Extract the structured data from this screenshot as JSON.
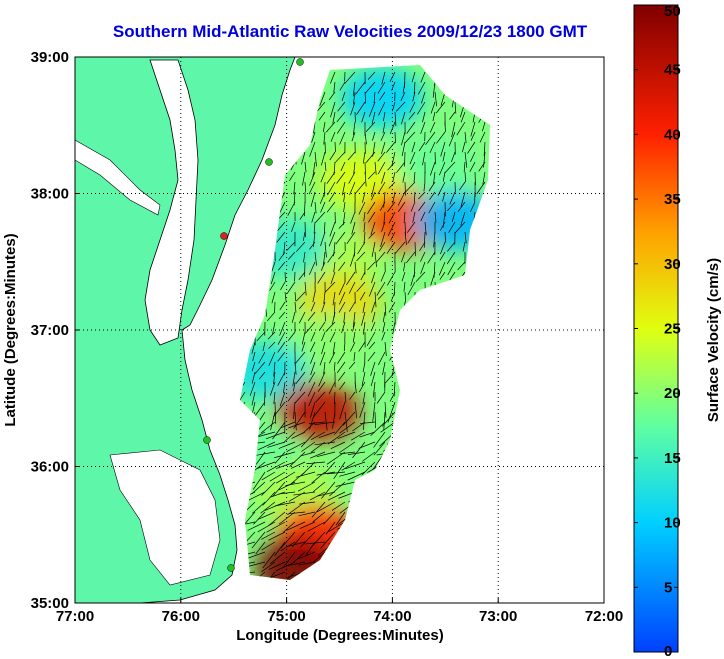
{
  "chart_data": {
    "type": "heatmap",
    "title": "Southern Mid-Atlantic Raw Velocities 2009/12/23 1800 GMT",
    "xlabel": "Longitude (Degrees:Minutes)",
    "ylabel": "Latitude (Degrees:Minutes)",
    "xlim": [
      -77,
      -72
    ],
    "ylim": [
      35,
      39
    ],
    "x_ticks": [
      {
        "value": -77,
        "label": "77:00"
      },
      {
        "value": -76,
        "label": "76:00"
      },
      {
        "value": -75,
        "label": "75:00"
      },
      {
        "value": -74,
        "label": "74:00"
      },
      {
        "value": -73,
        "label": "73:00"
      },
      {
        "value": -72,
        "label": "72:00"
      }
    ],
    "y_ticks": [
      {
        "value": 35,
        "label": "35:00"
      },
      {
        "value": 36,
        "label": "36:00"
      },
      {
        "value": 37,
        "label": "37:00"
      },
      {
        "value": 38,
        "label": "38:00"
      },
      {
        "value": 39,
        "label": "39:00"
      }
    ],
    "grid": true,
    "colorbar": {
      "label": "Surface Velocity (cm/s)",
      "range": [
        0,
        50
      ],
      "ticks": [
        "0",
        "5",
        "10",
        "15",
        "20",
        "25",
        "30",
        "35",
        "40",
        "45",
        "50"
      ],
      "colormap": "jet"
    },
    "colors": {
      "land": "#5ef7aa",
      "coast": "#000000",
      "vectors": "#000000",
      "isobath": "#888888",
      "title": "#0000dd"
    },
    "regions": [
      {
        "lon": -74.1,
        "lat": 38.7,
        "speed": 10
      },
      {
        "lon": -73.6,
        "lat": 38.2,
        "speed": 18
      },
      {
        "lon": -74.3,
        "lat": 38.1,
        "speed": 25
      },
      {
        "lon": -73.9,
        "lat": 37.8,
        "speed": 38
      },
      {
        "lon": -73.4,
        "lat": 37.8,
        "speed": 8
      },
      {
        "lon": -74.5,
        "lat": 37.5,
        "speed": 22
      },
      {
        "lon": -75.0,
        "lat": 37.6,
        "speed": 14
      },
      {
        "lon": -74.5,
        "lat": 37.2,
        "speed": 28
      },
      {
        "lon": -74.6,
        "lat": 36.9,
        "speed": 20
      },
      {
        "lon": -75.2,
        "lat": 36.7,
        "speed": 12
      },
      {
        "lon": -74.7,
        "lat": 36.4,
        "speed": 45
      },
      {
        "lon": -75.3,
        "lat": 36.1,
        "speed": 18
      },
      {
        "lon": -74.9,
        "lat": 35.8,
        "speed": 22
      },
      {
        "lon": -74.7,
        "lat": 35.5,
        "speed": 40
      },
      {
        "lon": -74.9,
        "lat": 35.25,
        "speed": 50
      }
    ]
  }
}
